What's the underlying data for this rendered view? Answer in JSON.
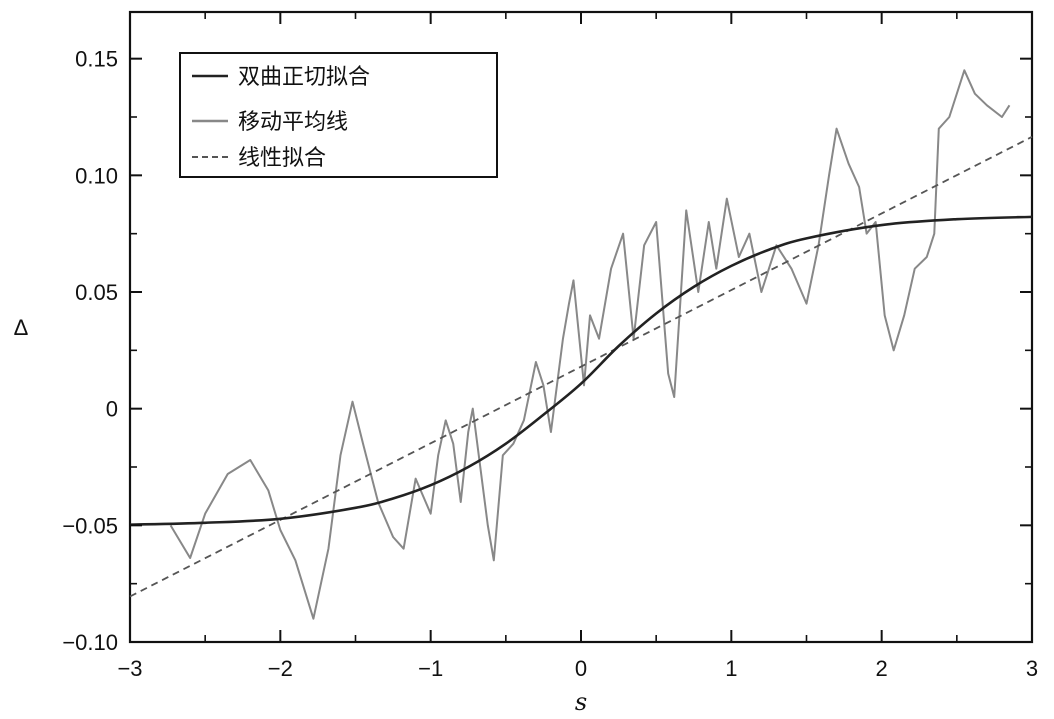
{
  "chart_data": {
    "type": "line",
    "xlabel": "s",
    "ylabel": "Δ",
    "xlim": [
      -3,
      3
    ],
    "ylim": [
      -0.1,
      0.17
    ],
    "x_ticks": [
      -3,
      -2,
      -1,
      0,
      1,
      2,
      3
    ],
    "x_tick_labels": [
      "−3",
      "−2",
      "−1",
      "0",
      "1",
      "2",
      "3"
    ],
    "y_ticks": [
      -0.1,
      -0.05,
      0,
      0.05,
      0.1,
      0.15
    ],
    "y_tick_labels": [
      "−0.10",
      "−0.05",
      "0",
      "0.05",
      "0.10",
      "0.15"
    ],
    "grid": false,
    "legend_position": "top-left",
    "series": [
      {
        "name": "双曲正切拟合",
        "style": "solid",
        "color": "#222222",
        "x": [
          -3.0,
          -2.5,
          -2.0,
          -1.5,
          -1.25,
          -1.0,
          -0.75,
          -0.5,
          -0.25,
          0.0,
          0.25,
          0.5,
          0.75,
          1.0,
          1.25,
          1.5,
          2.0,
          2.5,
          3.0
        ],
        "values": [
          -0.0497,
          -0.0489,
          -0.0472,
          -0.0425,
          -0.0385,
          -0.0328,
          -0.025,
          -0.015,
          -0.0026,
          0.0107,
          0.0268,
          0.0408,
          0.0522,
          0.0612,
          0.0681,
          0.073,
          0.0787,
          0.0812,
          0.0822
        ]
      },
      {
        "name": "移动平均线",
        "style": "solid",
        "color": "#888888",
        "x": [
          -2.73,
          -2.6,
          -2.5,
          -2.35,
          -2.2,
          -2.08,
          -2.0,
          -1.9,
          -1.78,
          -1.68,
          -1.6,
          -1.52,
          -1.45,
          -1.35,
          -1.25,
          -1.18,
          -1.1,
          -1.0,
          -0.95,
          -0.9,
          -0.85,
          -0.8,
          -0.75,
          -0.72,
          -0.68,
          -0.62,
          -0.58,
          -0.52,
          -0.45,
          -0.38,
          -0.3,
          -0.25,
          -0.2,
          -0.12,
          -0.08,
          -0.05,
          0.02,
          0.06,
          0.12,
          0.2,
          0.28,
          0.35,
          0.42,
          0.5,
          0.58,
          0.62,
          0.7,
          0.78,
          0.85,
          0.9,
          0.97,
          1.05,
          1.12,
          1.2,
          1.3,
          1.4,
          1.5,
          1.58,
          1.65,
          1.7,
          1.78,
          1.85,
          1.9,
          1.96,
          2.02,
          2.08,
          2.15,
          2.22,
          2.3,
          2.35,
          2.38,
          2.45,
          2.55,
          2.62,
          2.7,
          2.8,
          2.85
        ],
        "values": [
          -0.05,
          -0.064,
          -0.045,
          -0.028,
          -0.022,
          -0.035,
          -0.052,
          -0.065,
          -0.09,
          -0.06,
          -0.02,
          0.003,
          -0.015,
          -0.04,
          -0.055,
          -0.06,
          -0.03,
          -0.045,
          -0.02,
          -0.005,
          -0.015,
          -0.04,
          -0.01,
          0.0,
          -0.02,
          -0.05,
          -0.065,
          -0.02,
          -0.015,
          -0.005,
          0.02,
          0.01,
          -0.01,
          0.03,
          0.045,
          0.055,
          0.01,
          0.04,
          0.03,
          0.06,
          0.075,
          0.03,
          0.07,
          0.08,
          0.015,
          0.005,
          0.085,
          0.05,
          0.08,
          0.06,
          0.09,
          0.065,
          0.075,
          0.05,
          0.07,
          0.06,
          0.045,
          0.07,
          0.1,
          0.12,
          0.105,
          0.095,
          0.075,
          0.08,
          0.04,
          0.025,
          0.04,
          0.06,
          0.065,
          0.075,
          0.12,
          0.125,
          0.145,
          0.135,
          0.13,
          0.125,
          0.13
        ]
      },
      {
        "name": "线性拟合",
        "style": "dashed",
        "color": "#555555",
        "x": [
          -3.0,
          3.0
        ],
        "values": [
          -0.0805,
          0.1165
        ]
      }
    ]
  }
}
